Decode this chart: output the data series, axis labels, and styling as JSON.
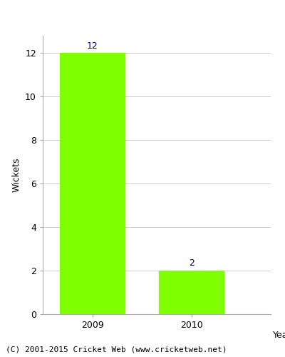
{
  "categories": [
    "2009",
    "2010"
  ],
  "values": [
    12,
    2
  ],
  "bar_color": "#7fff00",
  "bar_edgecolor": "#7fff00",
  "xlabel": "Year",
  "ylabel": "Wickets",
  "ylim": [
    0,
    12.8
  ],
  "yticks": [
    0,
    2,
    4,
    6,
    8,
    10,
    12
  ],
  "label_color": "#00008b",
  "label_fontsize": 9,
  "axis_label_fontsize": 9,
  "tick_fontsize": 9,
  "background_color": "#ffffff",
  "grid_color": "#cccccc",
  "footer_text": "(C) 2001-2015 Cricket Web (www.cricketweb.net)",
  "footer_fontsize": 8,
  "bar_width": 0.65,
  "xlim": [
    -0.5,
    1.8
  ]
}
